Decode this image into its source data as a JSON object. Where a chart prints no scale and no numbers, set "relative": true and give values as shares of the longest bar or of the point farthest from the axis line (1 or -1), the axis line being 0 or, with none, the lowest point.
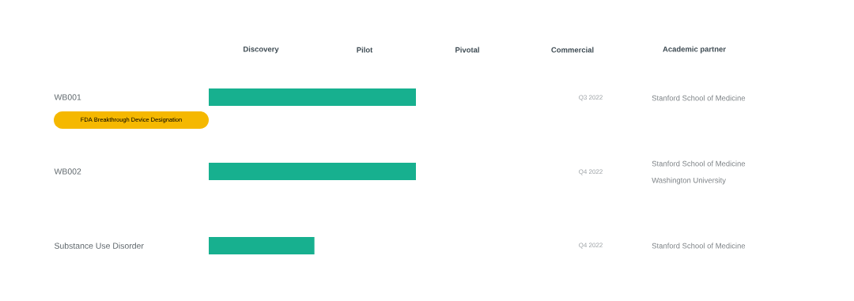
{
  "chart_data": {
    "type": "bar",
    "orientation": "horizontal",
    "relative": true,
    "categories": [
      "WB001",
      "WB002",
      "Substance Use Disorder"
    ],
    "values": [
      1,
      1,
      0.51
    ],
    "color": "#17b08f",
    "annotations": [
      "Discovery",
      "Pilot",
      "Pivotal",
      "Commercial",
      "Academic partner",
      "FDA Breakthrough Device Designation",
      "Q3 2022",
      "Q4 2022",
      "Q4 2022",
      "Stanford School of Medicine",
      "Stanford School of Medicine",
      "Washington University",
      "Stanford School of Medicine"
    ]
  }
}
